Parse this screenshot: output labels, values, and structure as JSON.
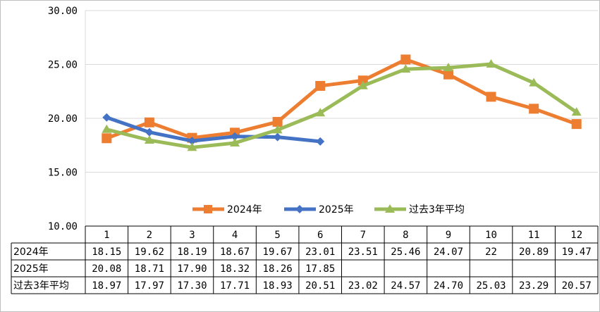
{
  "chart_data": {
    "type": "line",
    "categories": [
      "1",
      "2",
      "3",
      "4",
      "5",
      "6",
      "7",
      "8",
      "9",
      "10",
      "11",
      "12"
    ],
    "ylim": [
      10,
      30
    ],
    "yticks": [
      "10.00",
      "15.00",
      "20.00",
      "25.00",
      "30.00"
    ],
    "ytick_values": [
      10,
      15,
      20,
      25,
      30
    ],
    "grid": true,
    "legend": "bottom-center",
    "series": [
      {
        "name": "2024年",
        "color": "#ED7D31",
        "marker": "square",
        "values": [
          18.15,
          19.62,
          18.19,
          18.67,
          19.67,
          23.01,
          23.51,
          25.46,
          24.07,
          22,
          20.89,
          19.47
        ],
        "labels": [
          "18.15",
          "19.62",
          "18.19",
          "18.67",
          "19.67",
          "23.01",
          "23.51",
          "25.46",
          "24.07",
          "22",
          "20.89",
          "19.47"
        ]
      },
      {
        "name": "2025年",
        "color": "#4472C4",
        "marker": "diamond",
        "values": [
          20.08,
          18.71,
          17.9,
          18.32,
          18.26,
          17.85,
          null,
          null,
          null,
          null,
          null,
          null
        ],
        "labels": [
          "20.08",
          "18.71",
          "17.90",
          "18.32",
          "18.26",
          "17.85",
          "",
          "",
          "",
          "",
          "",
          ""
        ]
      },
      {
        "name": "过去3年平均",
        "color": "#9BBB59",
        "marker": "triangle",
        "values": [
          18.97,
          17.97,
          17.3,
          17.71,
          18.93,
          20.51,
          23.02,
          24.57,
          24.7,
          25.03,
          23.29,
          20.57
        ],
        "labels": [
          "18.97",
          "17.97",
          "17.30",
          "17.71",
          "18.93",
          "20.51",
          "23.02",
          "24.57",
          "24.70",
          "25.03",
          "23.29",
          "20.57"
        ]
      }
    ]
  }
}
